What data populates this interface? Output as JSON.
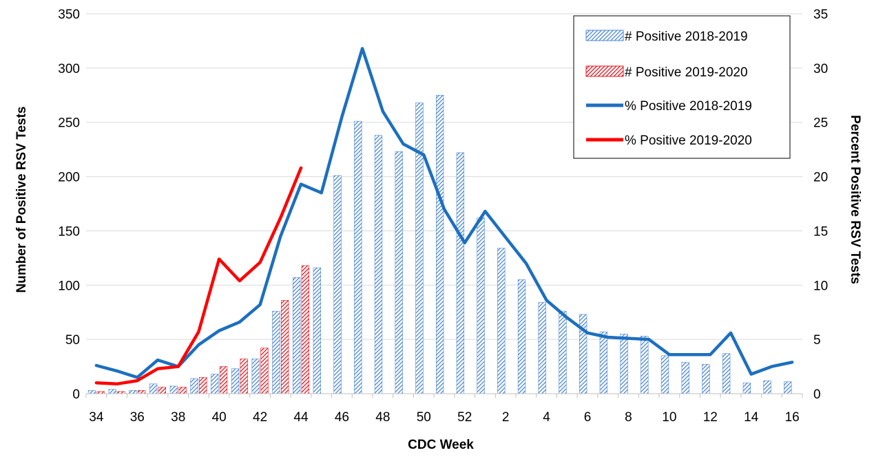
{
  "chart_data": {
    "type": "bar+line",
    "x_title": "CDC Week",
    "y_left_title": "Number of Positive RSV Tests",
    "y_right_title": "Percent Positive RSV Tests",
    "ylim_left": [
      0,
      350
    ],
    "ylim_right": [
      0,
      35
    ],
    "left_ticks": [
      "0",
      "50",
      "100",
      "150",
      "200",
      "250",
      "300",
      "350"
    ],
    "right_ticks": [
      "0",
      "5",
      "10",
      "15",
      "20",
      "25",
      "30",
      "35"
    ],
    "grid": "horizontal",
    "legend_position": "top-right",
    "weeks": [
      "34",
      "35",
      "36",
      "37",
      "38",
      "39",
      "40",
      "41",
      "42",
      "43",
      "44",
      "45",
      "46",
      "47",
      "48",
      "49",
      "50",
      "51",
      "52",
      "1",
      "2",
      "3",
      "4",
      "5",
      "6",
      "7",
      "8",
      "9",
      "10",
      "11",
      "12",
      "13",
      "14",
      "15",
      "16"
    ],
    "x_tick_labels": [
      "34",
      "36",
      "38",
      "40",
      "42",
      "44",
      "46",
      "48",
      "50",
      "52",
      "2",
      "4",
      "6",
      "8",
      "10",
      "12",
      "14",
      "16"
    ],
    "series": [
      {
        "name": "# Positive 2018-2019",
        "type": "bar",
        "axis": "left",
        "color": "#4a86d8",
        "values": [
          3,
          4,
          3,
          9,
          7,
          14,
          18,
          23,
          32,
          76,
          107,
          116,
          201,
          251,
          238,
          223,
          268,
          275,
          222,
          162,
          134,
          105,
          84,
          76,
          73,
          57,
          55,
          53,
          35,
          29,
          27,
          37,
          10,
          12,
          11
        ]
      },
      {
        "name": "# Positive 2019-2020",
        "type": "bar",
        "axis": "left",
        "color": "#e8141c",
        "values": [
          2,
          2,
          3,
          6,
          6,
          15,
          25,
          32,
          42,
          86,
          118
        ]
      },
      {
        "name": "% Positive 2018-2019",
        "type": "line",
        "axis": "right",
        "color": "#1c6fbf",
        "values": [
          2.6,
          2.1,
          1.5,
          3.1,
          2.5,
          4.5,
          5.8,
          6.6,
          8.2,
          14.5,
          19.3,
          18.5,
          25.5,
          31.8,
          26.0,
          23.0,
          22.0,
          17.0,
          13.9,
          16.8,
          14.4,
          12.0,
          8.6,
          7.0,
          5.6,
          5.2,
          5.1,
          5.0,
          3.6,
          3.6,
          3.6,
          5.6,
          1.8,
          2.5,
          2.9
        ]
      },
      {
        "name": "% Positive 2019-2020",
        "type": "line",
        "axis": "right",
        "color": "#ff0000",
        "values": [
          1.0,
          0.9,
          1.2,
          2.3,
          2.5,
          5.7,
          12.4,
          10.4,
          12.1,
          16.2,
          20.8
        ]
      }
    ]
  }
}
